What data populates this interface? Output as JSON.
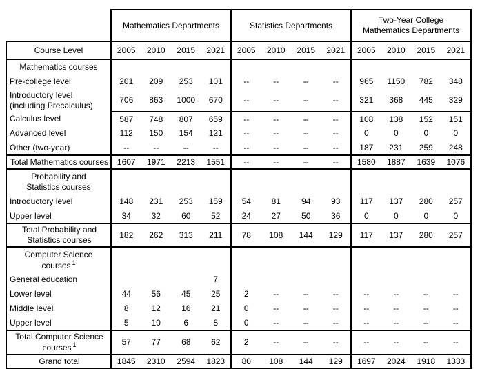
{
  "table": {
    "corner_label": "Course Level",
    "groups": [
      {
        "label": "Mathematics Departments"
      },
      {
        "label": "Statistics Departments"
      },
      {
        "label": "Two-Year College Mathematics Departments"
      }
    ],
    "years": [
      "2005",
      "2010",
      "2015",
      "2021"
    ],
    "rows": [
      {
        "name": "section-mathematics-courses",
        "type": "section",
        "label": "Mathematics courses",
        "values": [
          "",
          "",
          "",
          "",
          "",
          "",
          "",
          "",
          "",
          "",
          "",
          ""
        ]
      },
      {
        "name": "pre-college-level",
        "type": "data",
        "label": "Pre-college level",
        "values": [
          "201",
          "209",
          "253",
          "101",
          "--",
          "--",
          "--",
          "--",
          "965",
          "1150",
          "782",
          "348"
        ]
      },
      {
        "name": "introductory-level-math",
        "type": "data",
        "rule": true,
        "label": "Introductory level",
        "label2": "(including Precalculus)",
        "values": [
          "706",
          "863",
          "1000",
          "670",
          "--",
          "--",
          "--",
          "--",
          "321",
          "368",
          "445",
          "329"
        ]
      },
      {
        "name": "calculus-level",
        "type": "data",
        "label": "Calculus level",
        "values": [
          "587",
          "748",
          "807",
          "659",
          "--",
          "--",
          "--",
          "--",
          "108",
          "138",
          "152",
          "151"
        ]
      },
      {
        "name": "advanced-level",
        "type": "data",
        "label": "Advanced level",
        "values": [
          "112",
          "150",
          "154",
          "121",
          "--",
          "--",
          "--",
          "--",
          "0",
          "0",
          "0",
          "0"
        ]
      },
      {
        "name": "other-two-year",
        "type": "data",
        "label": "Other (two-year)",
        "values": [
          "--",
          "--",
          "--",
          "--",
          "--",
          "--",
          "--",
          "--",
          "187",
          "231",
          "259",
          "248"
        ]
      },
      {
        "name": "total-mathematics-courses",
        "type": "total",
        "label": "Total Mathematics courses",
        "values": [
          "1607",
          "1971",
          "2213",
          "1551",
          "--",
          "--",
          "--",
          "--",
          "1580",
          "1887",
          "1639",
          "1076"
        ]
      },
      {
        "name": "section-probability-statistics",
        "type": "section",
        "label": "Probability and",
        "label2": "Statistics courses",
        "values": [
          "",
          "",
          "",
          "",
          "",
          "",
          "",
          "",
          "",
          "",
          "",
          ""
        ]
      },
      {
        "name": "introductory-level-prob-stats",
        "type": "data",
        "label": "Introductory level",
        "values": [
          "148",
          "231",
          "253",
          "159",
          "54",
          "81",
          "94",
          "93",
          "117",
          "137",
          "280",
          "257"
        ]
      },
      {
        "name": "upper-level-prob-stats",
        "type": "data",
        "label": "Upper level",
        "values": [
          "34",
          "32",
          "60",
          "52",
          "24",
          "27",
          "50",
          "36",
          "0",
          "0",
          "0",
          "0"
        ]
      },
      {
        "name": "total-probability-statistics",
        "type": "total",
        "label": "Total Probability and",
        "label2": "Statistics courses",
        "values": [
          "182",
          "262",
          "313",
          "211",
          "78",
          "108",
          "144",
          "129",
          "117",
          "137",
          "280",
          "257"
        ]
      },
      {
        "name": "section-computer-science",
        "type": "section",
        "label": "Computer Science",
        "label2": "courses",
        "sup": "1",
        "values": [
          "",
          "",
          "",
          "",
          "",
          "",
          "",
          "",
          "",
          "",
          "",
          ""
        ]
      },
      {
        "name": "general-education",
        "type": "data",
        "label": "General education",
        "values": [
          "",
          "",
          "",
          "7",
          "",
          "",
          "",
          "",
          "",
          "",
          "",
          ""
        ]
      },
      {
        "name": "lower-level",
        "type": "data",
        "label": "Lower level",
        "values": [
          "44",
          "56",
          "45",
          "25",
          "2",
          "--",
          "--",
          "--",
          "--",
          "--",
          "--",
          "--"
        ]
      },
      {
        "name": "middle-level",
        "type": "data",
        "label": "Middle level",
        "values": [
          "8",
          "12",
          "16",
          "21",
          "0",
          "--",
          "--",
          "--",
          "--",
          "--",
          "--",
          "--"
        ]
      },
      {
        "name": "upper-level-cs",
        "type": "data",
        "label": "Upper level",
        "values": [
          "5",
          "10",
          "6",
          "8",
          "0",
          "--",
          "--",
          "--",
          "--",
          "--",
          "--",
          "--"
        ]
      },
      {
        "name": "total-computer-science",
        "type": "total",
        "label": "Total Computer Science",
        "label2": "courses",
        "sup": "1",
        "values": [
          "57",
          "77",
          "68",
          "62",
          "2",
          "--",
          "--",
          "--",
          "--",
          "--",
          "--",
          "--"
        ]
      },
      {
        "name": "grand-total",
        "type": "grand",
        "label": "Grand total",
        "values": [
          "1845",
          "2310",
          "2594",
          "1823",
          "80",
          "108",
          "144",
          "129",
          "1697",
          "2024",
          "1918",
          "1333"
        ]
      }
    ]
  }
}
